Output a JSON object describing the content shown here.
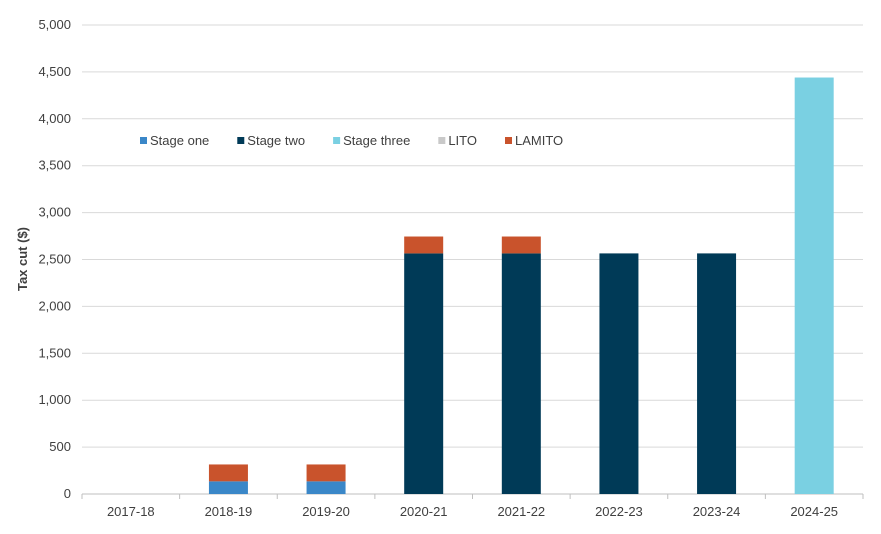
{
  "chart_data": {
    "type": "bar",
    "stacked": true,
    "title": "",
    "xlabel": "",
    "ylabel": "Tax cut  ($)",
    "ylim": [
      0,
      5000
    ],
    "yticks": [
      0,
      500,
      1000,
      1500,
      2000,
      2500,
      3000,
      3500,
      4000,
      4500,
      5000
    ],
    "ytick_labels": [
      "0",
      "500",
      "1,000",
      "1,500",
      "2,000",
      "2,500",
      "3,000",
      "3,500",
      "4,000",
      "4,500",
      "5,000"
    ],
    "grid": true,
    "legend_position": "top-left inside plot",
    "categories": [
      "2017-18",
      "2018-19",
      "2019-20",
      "2020-21",
      "2021-22",
      "2022-23",
      "2023-24",
      "2024-25"
    ],
    "series": [
      {
        "name": "Stage one",
        "color": "#3a87c8",
        "values": [
          0,
          135,
          135,
          0,
          0,
          0,
          0,
          0
        ]
      },
      {
        "name": "Stage two",
        "color": "#003a57",
        "values": [
          0,
          0,
          0,
          2565,
          2565,
          2565,
          2565,
          0
        ]
      },
      {
        "name": "Stage three",
        "color": "#7ad0e2",
        "values": [
          0,
          0,
          0,
          0,
          0,
          0,
          0,
          4440
        ]
      },
      {
        "name": "LITO",
        "color": "#c9c9c9",
        "values": [
          0,
          0,
          0,
          0,
          0,
          0,
          0,
          0
        ]
      },
      {
        "name": "LAMITO",
        "color": "#c9532c",
        "values": [
          0,
          180,
          180,
          180,
          180,
          0,
          0,
          0
        ]
      }
    ]
  }
}
